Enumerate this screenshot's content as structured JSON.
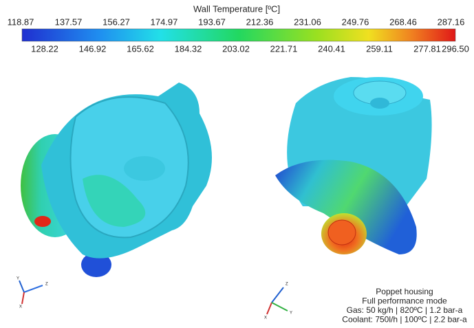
{
  "colorbar": {
    "title": "Wall Temperature [ºC]",
    "ticks_top": [
      "118.87",
      "137.57",
      "156.27",
      "174.97",
      "193.67",
      "212.36",
      "231.06",
      "249.76",
      "268.46",
      "287.16"
    ],
    "ticks_bottom": [
      "128.22",
      "146.92",
      "165.62",
      "184.32",
      "203.02",
      "221.71",
      "240.41",
      "259.11",
      "277.81",
      "296.50"
    ]
  },
  "triads": [
    {
      "labels": [
        "Y",
        "Z",
        "X"
      ]
    },
    {
      "labels": [
        "Z",
        "X",
        "Y"
      ]
    }
  ],
  "annotation": {
    "lines": [
      "Poppet housing",
      "Full performance mode",
      "Gas: 50 kg/h | 820ºC | 1.2 bar-a",
      "Coolant: 750l/h | 100ºC | 2.2 bar-a"
    ]
  }
}
